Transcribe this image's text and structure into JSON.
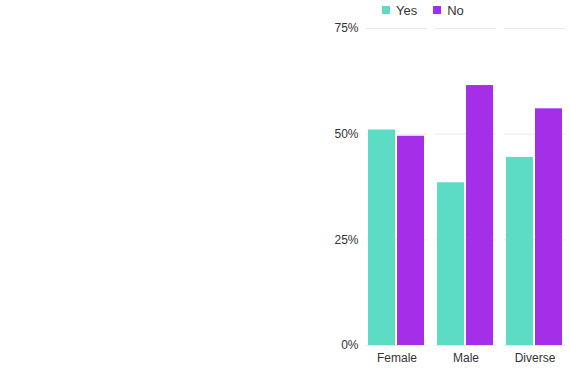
{
  "chart_data": {
    "type": "bar",
    "categories": [
      "Female",
      "Male",
      "Diverse"
    ],
    "series": [
      {
        "name": "Yes",
        "color": "#5cdcc4",
        "values": [
          51,
          38.5,
          44.5
        ]
      },
      {
        "name": "No",
        "color": "#a52fe8",
        "values": [
          49.5,
          61.5,
          56
        ]
      }
    ],
    "ylim": [
      0,
      75
    ],
    "yticks": [
      {
        "value": 0,
        "label": "0%"
      },
      {
        "value": 25,
        "label": "25%"
      },
      {
        "value": 50,
        "label": "50%"
      },
      {
        "value": 75,
        "label": "75%"
      }
    ],
    "grid": true,
    "legend": "top"
  }
}
